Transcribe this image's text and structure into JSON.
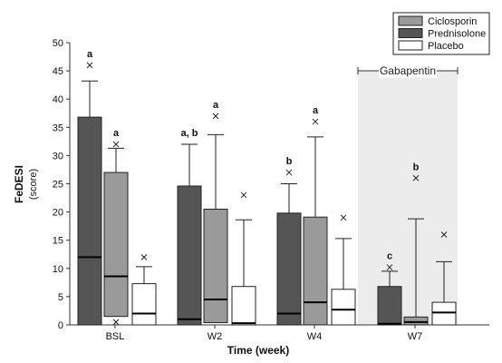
{
  "chart_data": {
    "type": "boxplot",
    "title": "",
    "xlabel": "Time (week)",
    "ylabel_main": "FeDESI",
    "ylabel_sub": "(score)",
    "ylim": [
      0,
      50
    ],
    "yticks": [
      0,
      5,
      10,
      15,
      20,
      25,
      30,
      35,
      40,
      45,
      50
    ],
    "categories": [
      "BSL",
      "W2",
      "W4",
      "W7"
    ],
    "shaded_region": {
      "label": "Gabapentin",
      "category": "W7"
    },
    "legend": {
      "placement": "top-right",
      "entries": [
        {
          "name": "Ciclosporin",
          "color": "#9a9a9a"
        },
        {
          "name": "Prednisolone",
          "color": "#555555"
        },
        {
          "name": "Placebo",
          "color": "#ffffff"
        }
      ]
    },
    "group_order": [
      "Prednisolone",
      "Ciclosporin",
      "Placebo"
    ],
    "boxes": [
      {
        "category": "BSL",
        "series": "Prednisolone",
        "min": 0,
        "q1": 0,
        "median": 12,
        "q3": 36.8,
        "max": 43.2,
        "outlier": 46,
        "letter": "a"
      },
      {
        "category": "BSL",
        "series": "Ciclosporin",
        "min": 0.5,
        "q1": 1.5,
        "median": 8.6,
        "q3": 27,
        "max": 31.3,
        "outlier": 32,
        "outlier_low": 0.5,
        "letter": "a"
      },
      {
        "category": "BSL",
        "series": "Placebo",
        "min": 0,
        "q1": 0,
        "median": 2,
        "q3": 7.3,
        "max": 10.3,
        "outlier": 12,
        "letter": ""
      },
      {
        "category": "W2",
        "series": "Prednisolone",
        "min": 0,
        "q1": 0,
        "median": 1,
        "q3": 24.6,
        "max": 32,
        "outlier": null,
        "letter": "a, b"
      },
      {
        "category": "W2",
        "series": "Ciclosporin",
        "min": 0,
        "q1": 0.4,
        "median": 4.5,
        "q3": 20.5,
        "max": 33.7,
        "outlier": 37,
        "letter": "a"
      },
      {
        "category": "W2",
        "series": "Placebo",
        "min": 0,
        "q1": 0,
        "median": 0.3,
        "q3": 6.8,
        "max": 18.6,
        "outlier": 23,
        "letter": ""
      },
      {
        "category": "W4",
        "series": "Prednisolone",
        "min": 0,
        "q1": 0,
        "median": 2,
        "q3": 19.8,
        "max": 25,
        "outlier": 27,
        "letter": "b"
      },
      {
        "category": "W4",
        "series": "Ciclosporin",
        "min": 0,
        "q1": 0,
        "median": 4,
        "q3": 19.1,
        "max": 33.3,
        "outlier": 36,
        "letter": "a"
      },
      {
        "category": "W4",
        "series": "Placebo",
        "min": 0,
        "q1": 0,
        "median": 2.7,
        "q3": 6.3,
        "max": 15.3,
        "outlier": 19,
        "letter": ""
      },
      {
        "category": "W7",
        "series": "Prednisolone",
        "min": 0,
        "q1": 0,
        "median": 0.2,
        "q3": 6.8,
        "max": 9.5,
        "outlier": 10.2,
        "letter": "c"
      },
      {
        "category": "W7",
        "series": "Ciclosporin",
        "min": 0,
        "q1": 0,
        "median": 0.5,
        "q3": 1.4,
        "max": 18.8,
        "outlier": 26,
        "letter": "b"
      },
      {
        "category": "W7",
        "series": "Placebo",
        "min": 0,
        "q1": 0,
        "median": 2.2,
        "q3": 4,
        "max": 11.2,
        "outlier": 16,
        "letter": ""
      }
    ]
  }
}
